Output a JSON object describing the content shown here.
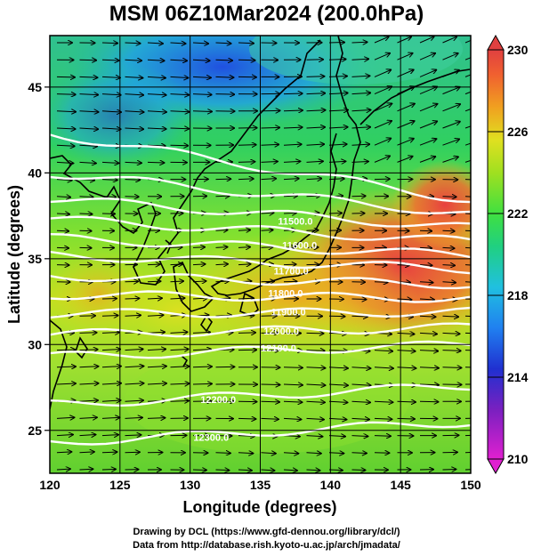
{
  "title": "MSM 06Z10Mar2024 (200.0hPa)",
  "footer": {
    "line1": "Drawing by DCL (https://www.gfd-dennou.org/library/dcl/)",
    "line2": "Data from http://database.rish.kyoto-u.ac.jp/arch/jmadata/"
  },
  "chart_data": {
    "type": "heatmap",
    "xlabel": "Longitude (degrees)",
    "ylabel": "Latitude  (degrees)",
    "xlim": [
      120,
      150
    ],
    "ylim": [
      22.5,
      48
    ],
    "x_ticks": [
      120,
      125,
      130,
      135,
      140,
      145,
      150
    ],
    "y_ticks": [
      25,
      30,
      35,
      40,
      45
    ],
    "colorbar": {
      "min": 210,
      "max": 230,
      "labels": [
        210,
        214,
        218,
        222,
        226,
        230
      ],
      "colors": [
        "#e020d0",
        "#7a20c0",
        "#2030d0",
        "#2080f0",
        "#20c0e0",
        "#20d080",
        "#40e040",
        "#a0e020",
        "#e0e020",
        "#f0a020",
        "#f06030",
        "#e04040"
      ]
    },
    "temperature_field_note": "",
    "contours": [
      {
        "label": "",
        "lat_at_120": 42.3,
        "lat_at_150": 38.4
      },
      {
        "label": "",
        "lat_at_120": 40.0,
        "lat_at_150": 37.6
      },
      {
        "label": "",
        "lat_at_120": 38.5,
        "lat_at_150": 36.8
      },
      {
        "label": "",
        "lat_at_120": 37.3,
        "lat_at_150": 36.0
      },
      {
        "label": "",
        "lat_at_120": 36.2,
        "lat_at_150": 35.2
      },
      {
        "label": "",
        "lat_at_120": 35.2,
        "lat_at_150": 34.4
      },
      {
        "label": "",
        "lat_at_120": 34.0,
        "lat_at_150": 33.5
      },
      {
        "label": "",
        "lat_at_120": 32.9,
        "lat_at_150": 32.7
      },
      {
        "label": "",
        "lat_at_120": 31.8,
        "lat_at_150": 31.9
      },
      {
        "label": "",
        "lat_at_120": 30.6,
        "lat_at_150": 31.0
      },
      {
        "label": "",
        "lat_at_120": 29.3,
        "lat_at_150": 30.0
      },
      {
        "label": "",
        "lat_at_120": 26.5,
        "lat_at_150": 27.6
      },
      {
        "label": "",
        "lat_at_120": 24.3,
        "lat_at_150": 25.5
      }
    ],
    "contour_labels": [
      {
        "text": "11500.0",
        "lon": 137.5,
        "lat": 37.2
      },
      {
        "text": "11600.0",
        "lon": 137.8,
        "lat": 35.8
      },
      {
        "text": "11700.0",
        "lon": 137.2,
        "lat": 34.3
      },
      {
        "text": "11800.0",
        "lon": 136.8,
        "lat": 33.0
      },
      {
        "text": "11900.0",
        "lon": 137.0,
        "lat": 31.9
      },
      {
        "text": "12000.0",
        "lon": 136.5,
        "lat": 30.8
      },
      {
        "text": "12100.0",
        "lon": 136.3,
        "lat": 29.8
      },
      {
        "text": "12200.0",
        "lon": 132.0,
        "lat": 26.8
      },
      {
        "text": "12300.0",
        "lon": 131.5,
        "lat": 24.6
      }
    ]
  }
}
